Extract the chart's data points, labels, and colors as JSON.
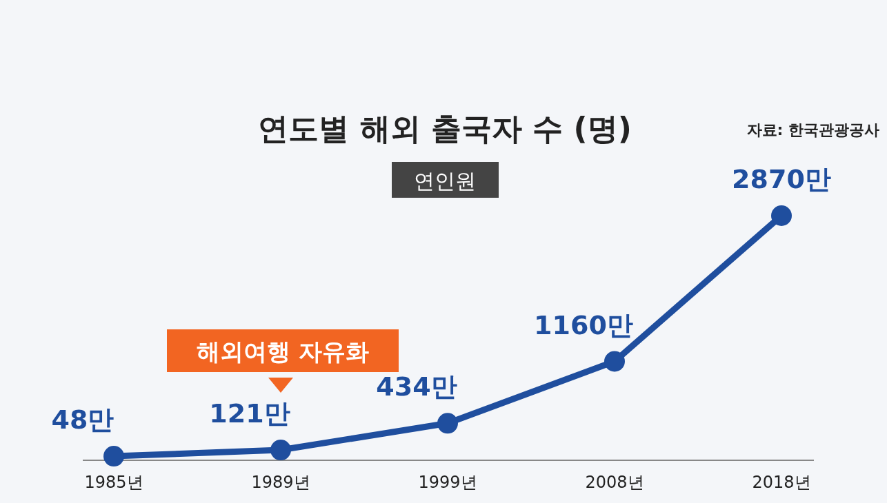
{
  "chart_data": {
    "type": "line",
    "title": "연도별 해외 출국자 수 (명)",
    "subtitle": "연인원",
    "categories": [
      "1985년",
      "1989년",
      "1999년",
      "2008년",
      "2018년"
    ],
    "series": [
      {
        "color": "#1f4e9e",
        "values": [
          48,
          121,
          434,
          1160,
          2870
        ],
        "value_labels": [
          "48만",
          "121만",
          "434만",
          "1160만",
          "2870만"
        ]
      }
    ],
    "marker": "circle",
    "annotations": [
      "해외여행 자유화",
      "자료: 한국관광공사"
    ]
  }
}
